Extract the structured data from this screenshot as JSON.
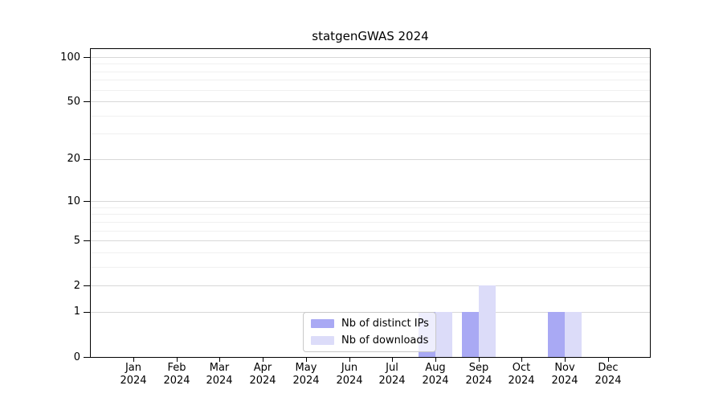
{
  "chart_data": {
    "type": "bar",
    "title": "statgenGWAS 2024",
    "categories": [
      "Jan",
      "Feb",
      "Mar",
      "Apr",
      "May",
      "Jun",
      "Jul",
      "Aug",
      "Sep",
      "Oct",
      "Nov",
      "Dec"
    ],
    "year_label": "2024",
    "series": [
      {
        "name": "Nb of distinct IPs",
        "color": "#a9a9f4",
        "values": [
          0,
          0,
          0,
          0,
          0,
          0,
          0,
          1,
          1,
          0,
          1,
          0
        ]
      },
      {
        "name": "Nb of downloads",
        "color": "#dcdcf9",
        "values": [
          0,
          0,
          0,
          0,
          0,
          0,
          0,
          1,
          2,
          0,
          1,
          0
        ]
      }
    ],
    "xlabel": "",
    "ylabel": "",
    "yscale": "log1p",
    "yticks": [
      0,
      1,
      2,
      5,
      10,
      20,
      50,
      100
    ],
    "minor_yticks": [
      3,
      4,
      6,
      7,
      8,
      9,
      30,
      40,
      60,
      70,
      80,
      90
    ],
    "ylim": [
      0,
      128
    ],
    "grid": "horizontal",
    "grid_major_color": "#d8d8d8",
    "grid_minor_color": "#f0f0f0",
    "legend_position": "inside-bottom-center"
  }
}
